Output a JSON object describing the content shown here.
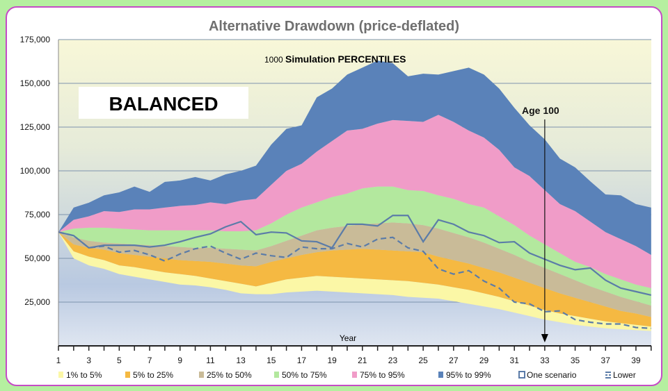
{
  "chart_data": {
    "type": "area",
    "title": "Alternative Drawdown (price-deflated)",
    "subtitle_prefix": "1000",
    "subtitle": "Simulation PERCENTILES",
    "badge": "BALANCED",
    "annotation": {
      "label": "Age 100",
      "x": 33
    },
    "xlabel": "Year",
    "ylabel": "",
    "xlim": [
      1,
      40
    ],
    "ylim": [
      0,
      175000
    ],
    "x_ticks": [
      1,
      3,
      5,
      7,
      9,
      11,
      13,
      15,
      17,
      19,
      21,
      23,
      25,
      27,
      29,
      31,
      33,
      35,
      37,
      39
    ],
    "y_ticks": [
      25000,
      50000,
      75000,
      100000,
      125000,
      150000,
      175000
    ],
    "y_tick_labels": [
      "25,000",
      "50,000",
      "75,000",
      "100,000",
      "125,000",
      "150,000",
      "175,000"
    ],
    "grid": "horizontal",
    "legend_position": "bottom",
    "x": [
      1,
      2,
      3,
      4,
      5,
      6,
      7,
      8,
      9,
      10,
      11,
      12,
      13,
      14,
      15,
      16,
      17,
      18,
      19,
      20,
      21,
      22,
      23,
      24,
      25,
      26,
      27,
      28,
      29,
      30,
      31,
      32,
      33,
      34,
      35,
      36,
      37,
      38,
      39,
      40
    ],
    "percentiles": {
      "p1": [
        65000,
        50000,
        46000,
        44000,
        41000,
        39500,
        38000,
        36500,
        35000,
        34500,
        33500,
        32000,
        30000,
        29500,
        29500,
        30500,
        31000,
        31500,
        31000,
        30500,
        30000,
        29500,
        29000,
        28000,
        27500,
        27000,
        25500,
        24000,
        22500,
        21000,
        19000,
        17000,
        15000,
        13500,
        12000,
        11000,
        10000,
        9500,
        9000,
        8500
      ],
      "p5": [
        65000,
        54000,
        51000,
        49000,
        46000,
        45000,
        43500,
        42000,
        41000,
        40000,
        38500,
        37000,
        35500,
        34000,
        36000,
        38000,
        39000,
        40000,
        39500,
        39000,
        38500,
        38000,
        37500,
        37000,
        36000,
        35000,
        33500,
        32000,
        30000,
        28000,
        25500,
        23000,
        20500,
        18500,
        17000,
        15500,
        14000,
        13000,
        12000,
        11000
      ],
      "p25": [
        65000,
        58000,
        56000,
        55000,
        53000,
        52000,
        51000,
        50000,
        49000,
        48500,
        48000,
        47000,
        46000,
        45500,
        48000,
        50000,
        52000,
        53500,
        54500,
        55000,
        55500,
        55000,
        54500,
        54000,
        53500,
        51000,
        49000,
        47000,
        44500,
        42000,
        39000,
        36000,
        33000,
        30000,
        27500,
        25000,
        22500,
        20000,
        18500,
        16500
      ],
      "p50": [
        65000,
        62000,
        60000,
        59000,
        58500,
        58000,
        57500,
        57000,
        56500,
        56000,
        56000,
        55500,
        55000,
        54500,
        57000,
        60000,
        63000,
        66000,
        67500,
        68500,
        69500,
        70000,
        70500,
        70000,
        69000,
        67000,
        64500,
        62000,
        59000,
        55500,
        52000,
        48000,
        44500,
        41000,
        37500,
        34000,
        31000,
        28000,
        25500,
        23000
      ],
      "p75": [
        65000,
        67000,
        67500,
        67500,
        67000,
        66500,
        66000,
        66000,
        66000,
        66000,
        66000,
        65500,
        65500,
        66000,
        70000,
        75000,
        79000,
        82000,
        85000,
        87000,
        90000,
        91000,
        91000,
        89000,
        88500,
        86000,
        84000,
        81000,
        79000,
        74000,
        69000,
        63000,
        58000,
        53000,
        48000,
        45000,
        41000,
        38000,
        35000,
        33000
      ],
      "p95": [
        65000,
        72000,
        74000,
        77000,
        76500,
        78000,
        78000,
        79000,
        80000,
        80500,
        82000,
        81000,
        83000,
        84000,
        92000,
        100000,
        104000,
        111000,
        117000,
        123000,
        124000,
        127000,
        129000,
        128500,
        128000,
        132000,
        128000,
        123000,
        119000,
        112000,
        102000,
        97000,
        89000,
        81000,
        77000,
        71000,
        65000,
        61000,
        57000,
        52000
      ],
      "p99": [
        65000,
        79000,
        81800,
        86000,
        87700,
        91000,
        88000,
        93700,
        94500,
        96500,
        94500,
        98000,
        100000,
        103000,
        115000,
        124000,
        126000,
        142000,
        147000,
        155000,
        159000,
        163000,
        161500,
        154000,
        155500,
        155000,
        157000,
        159000,
        155000,
        147000,
        136000,
        126000,
        118000,
        107000,
        102000,
        94000,
        86500,
        86000,
        81000,
        79000
      ]
    },
    "series": [
      {
        "name": "1% to 5%",
        "lower": "p1",
        "upper": "p5",
        "color": "#fbf7a6"
      },
      {
        "name": "5% to 25%",
        "lower": "p5",
        "upper": "p25",
        "color": "#f5b942"
      },
      {
        "name": "25% to 50%",
        "lower": "p25",
        "upper": "p50",
        "color": "#c9bb98"
      },
      {
        "name": "50% to 75%",
        "lower": "p50",
        "upper": "p75",
        "color": "#b3e89e"
      },
      {
        "name": "75% to 95%",
        "lower": "p75",
        "upper": "p95",
        "color": "#f09cc8"
      },
      {
        "name": "95% to 99%",
        "lower": "p95",
        "upper": "p99",
        "color": "#5a82b9"
      }
    ],
    "lines": [
      {
        "name": "One scenario",
        "style": "solid",
        "color": "#5b7ca8",
        "values": [
          65000,
          63000,
          56000,
          57500,
          57500,
          57500,
          56500,
          57500,
          59500,
          62000,
          64000,
          68000,
          71000,
          63500,
          65000,
          64500,
          60000,
          59500,
          56000,
          69500,
          69500,
          68500,
          74500,
          74500,
          59500,
          72000,
          69500,
          65000,
          63000,
          59000,
          59500,
          53000,
          49500,
          46000,
          43500,
          44500,
          37500,
          33000,
          31000,
          29000
        ]
      },
      {
        "name": "Lower",
        "style": "dashed",
        "color": "#5b7ca8",
        "values": [
          65000,
          63000,
          56000,
          57000,
          53500,
          54500,
          52000,
          48500,
          52500,
          55500,
          57000,
          53000,
          49500,
          53000,
          51500,
          50500,
          56500,
          55500,
          55500,
          58500,
          56500,
          61000,
          62000,
          56000,
          54000,
          44000,
          41000,
          43000,
          37000,
          33000,
          25000,
          24000,
          19500,
          20000,
          15000,
          13500,
          12500,
          12500,
          10500,
          10000
        ]
      }
    ]
  }
}
